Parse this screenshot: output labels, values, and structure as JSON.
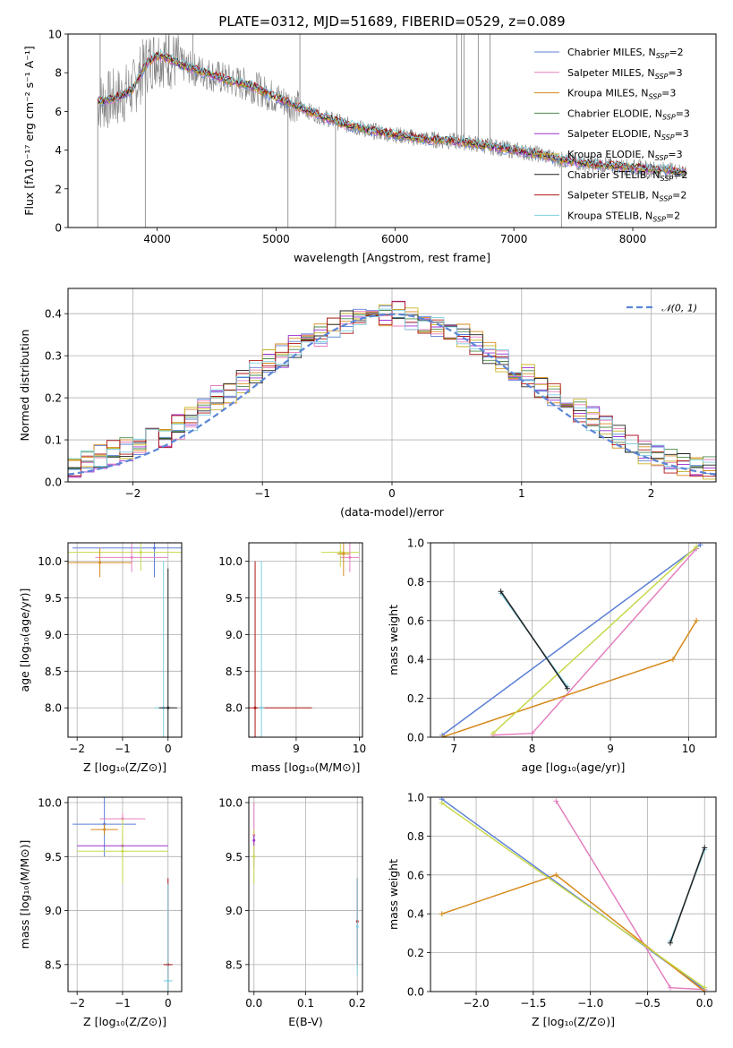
{
  "chart_data": [
    {
      "type": "line",
      "title": "PLATE=0312, MJD=51689, FIBERID=0529, z=0.089",
      "xlabel": "wavelength [Angstrom, rest frame]",
      "ylabel": "Flux [fλ10⁻¹⁷ erg cm⁻² s⁻¹ A⁻¹]",
      "xlim": [
        3250,
        8700
      ],
      "ylim": [
        0,
        10
      ],
      "xticks": [
        "4000",
        "5000",
        "6000",
        "7000",
        "8000"
      ],
      "yticks": [
        "0",
        "2",
        "4",
        "6",
        "8",
        "10"
      ],
      "grid": false,
      "legend_position": "top-right",
      "data_series": {
        "name": "",
        "color": "#808080"
      },
      "series": [
        {
          "name": "Chabrier MILES, N",
          "sub": "SSP",
          "suffix": "=2",
          "color": "#5b7fd6"
        },
        {
          "name": "Salpeter MILES, N",
          "sub": "SSP",
          "suffix": "=3",
          "color": "#e57fbf"
        },
        {
          "name": "Kroupa MILES, N",
          "sub": "SSP",
          "suffix": "=3",
          "color": "#d68a1c"
        },
        {
          "name": "Chabrier ELODIE, N",
          "sub": "SSP",
          "suffix": "=3",
          "color": "#4b8a4b"
        },
        {
          "name": "Salpeter ELODIE, N",
          "sub": "SSP",
          "suffix": "=3",
          "color": "#9b30d0"
        },
        {
          "name": "Kroupa ELODIE, N",
          "sub": "SSP",
          "suffix": "=3",
          "color": "#c8b428"
        },
        {
          "name": "Chabrier STELIB, N",
          "sub": "SSP",
          "suffix": "=2",
          "color": "#222222"
        },
        {
          "name": "Salpeter STELIB, N",
          "sub": "SSP",
          "suffix": "=2",
          "color": "#b01515"
        },
        {
          "name": "Kroupa STELIB, N",
          "sub": "SSP",
          "suffix": "=2",
          "color": "#7ecfe0"
        }
      ],
      "continuum": [
        [
          3500,
          6.5
        ],
        [
          3600,
          6.6
        ],
        [
          3700,
          6.8
        ],
        [
          3800,
          7.2
        ],
        [
          3900,
          8.4
        ],
        [
          4000,
          8.9
        ],
        [
          4100,
          8.7
        ],
        [
          4200,
          8.4
        ],
        [
          4400,
          8.0
        ],
        [
          4600,
          7.6
        ],
        [
          4800,
          7.3
        ],
        [
          5000,
          6.7
        ],
        [
          5200,
          6.2
        ],
        [
          5400,
          5.7
        ],
        [
          5600,
          5.3
        ],
        [
          5800,
          5.0
        ],
        [
          6000,
          4.8
        ],
        [
          6200,
          4.6
        ],
        [
          6400,
          4.5
        ],
        [
          6600,
          4.4
        ],
        [
          6800,
          4.2
        ],
        [
          7000,
          4.0
        ],
        [
          7200,
          3.8
        ],
        [
          7400,
          3.5
        ],
        [
          7600,
          3.3
        ],
        [
          7800,
          3.2
        ],
        [
          8000,
          3.1
        ],
        [
          8200,
          3.0
        ],
        [
          8400,
          2.9
        ]
      ],
      "data_spikes": [
        [
          3500,
          0.0
        ],
        [
          3520,
          10.0
        ],
        [
          3900,
          0.0
        ],
        [
          4100,
          10.0
        ],
        [
          4300,
          10.0
        ],
        [
          5100,
          0.0
        ],
        [
          5200,
          10.0
        ],
        [
          5500,
          0.0
        ],
        [
          6520,
          10.0
        ],
        [
          6560,
          10.0
        ],
        [
          6580,
          10.0
        ],
        [
          6700,
          10.0
        ],
        [
          6800,
          10.0
        ],
        [
          7400,
          0.0
        ]
      ]
    },
    {
      "type": "line",
      "xlabel": "(data-model)/error",
      "ylabel": "Normed distribution",
      "xlim": [
        -2.5,
        2.5
      ],
      "ylim": [
        0,
        0.46
      ],
      "xticks": [
        "−2",
        "−1",
        "0",
        "1",
        "2"
      ],
      "yticks": [
        "0.0",
        "0.1",
        "0.2",
        "0.3",
        "0.4"
      ],
      "grid": true,
      "legend": {
        "label": "𝒩(0, 1)",
        "position": "top-right",
        "color": "#5b86d6"
      },
      "bin_width": 0.1,
      "hist_base": [
        0.04,
        0.05,
        0.06,
        0.07,
        0.08,
        0.08,
        0.1,
        0.11,
        0.13,
        0.15,
        0.17,
        0.2,
        0.21,
        0.24,
        0.26,
        0.29,
        0.3,
        0.32,
        0.33,
        0.35,
        0.36,
        0.38,
        0.39,
        0.4,
        0.4,
        0.4,
        0.39,
        0.38,
        0.37,
        0.36,
        0.35,
        0.33,
        0.31,
        0.29,
        0.27,
        0.25,
        0.23,
        0.21,
        0.19,
        0.17,
        0.15,
        0.13,
        0.11,
        0.09,
        0.07,
        0.06,
        0.05,
        0.04,
        0.035,
        0.03
      ]
    },
    {
      "type": "scatter",
      "xlabel": "Z [log₁₀(Z/Z⊙)]",
      "ylabel": "age  [log₁₀(age/yr)]",
      "xlim": [
        -2.2,
        0.3
      ],
      "ylim": [
        7.6,
        10.25
      ],
      "xticks": [
        "−2",
        "−1",
        "0"
      ],
      "yticks": [
        "8.0",
        "8.5",
        "9.0",
        "9.5",
        "10.0"
      ],
      "grid": true,
      "points": [
        {
          "x": -0.3,
          "y": 10.18,
          "xerr": 1.8,
          "yerr": 0.4,
          "color": "#5b7fd6"
        },
        {
          "x": -0.6,
          "y": 10.12,
          "xerr": 1.7,
          "yerr": 0.25,
          "color": "#c8d84a"
        },
        {
          "x": -0.8,
          "y": 10.05,
          "xerr": 0.8,
          "yerr": 0.2,
          "color": "#e57fbf"
        },
        {
          "x": -1.5,
          "y": 9.98,
          "xerr": 0.7,
          "yerr": 0.2,
          "color": "#d68a1c"
        },
        {
          "x": -0.1,
          "y": 8.0,
          "xerr": 0.2,
          "yerr": 2.0,
          "color": "#7ecfe0"
        },
        {
          "x": 0.0,
          "y": 8.0,
          "xerr": 0.2,
          "yerr": 1.9,
          "color": "#222222"
        }
      ]
    },
    {
      "type": "scatter",
      "xlabel": "mass [log₁₀(M/M⊙)]",
      "ylabel": "",
      "xlim": [
        8.25,
        10.05
      ],
      "ylim": [
        7.6,
        10.25
      ],
      "xticks": [
        "9",
        "10"
      ],
      "yticks": [
        "8.0",
        "8.5",
        "9.0",
        "9.5",
        "10.0"
      ],
      "grid": true,
      "points": [
        {
          "x": 9.7,
          "y": 10.12,
          "xerr": 0.3,
          "yerr": 0.2,
          "color": "#c8d84a"
        },
        {
          "x": 9.85,
          "y": 10.05,
          "xerr": 0.15,
          "yerr": 0.2,
          "color": "#e57fbf"
        },
        {
          "x": 9.75,
          "y": 10.1,
          "xerr": 0.1,
          "yerr": 0.3,
          "color": "#d68a1c"
        },
        {
          "x": 8.35,
          "y": 8.0,
          "xerr": 0.9,
          "yerr": 2.0,
          "color": "#b01515"
        },
        {
          "x": 8.45,
          "y": 8.0,
          "xerr": 0.05,
          "yerr": 2.0,
          "color": "#7ecfe0"
        }
      ]
    },
    {
      "type": "line",
      "xlabel": "age  [log₁₀(age/yr)]",
      "ylabel": "mass weight",
      "xlim": [
        6.7,
        10.35
      ],
      "ylim": [
        0,
        1
      ],
      "xticks": [
        "7",
        "8",
        "9",
        "10"
      ],
      "yticks": [
        "0.0",
        "0.2",
        "0.4",
        "0.6",
        "0.8",
        "1.0"
      ],
      "grid": true,
      "series": [
        {
          "color": "#5b7fd6",
          "x": [
            6.85,
            10.15
          ],
          "y": [
            0.01,
            0.99
          ]
        },
        {
          "color": "#e57fbf",
          "x": [
            7.5,
            8.0,
            10.1
          ],
          "y": [
            0.01,
            0.02,
            0.97
          ]
        },
        {
          "color": "#d68a1c",
          "x": [
            6.85,
            9.8,
            10.1
          ],
          "y": [
            0.0,
            0.4,
            0.6
          ]
        },
        {
          "color": "#c8d84a",
          "x": [
            7.5,
            10.1
          ],
          "y": [
            0.02,
            0.98
          ]
        },
        {
          "color": "#7ecfe0",
          "x": [
            7.6,
            8.45
          ],
          "y": [
            0.74,
            0.26
          ]
        },
        {
          "color": "#222222",
          "x": [
            7.6,
            8.45
          ],
          "y": [
            0.75,
            0.25
          ]
        }
      ]
    },
    {
      "type": "scatter",
      "xlabel": "Z [log₁₀(Z/Z⊙)]",
      "ylabel": "mass [log₁₀(M/M⊙)]",
      "xlim": [
        -2.2,
        0.3
      ],
      "ylim": [
        8.25,
        10.05
      ],
      "xticks": [
        "−2",
        "−1",
        "0"
      ],
      "yticks": [
        "8.5",
        "9.0",
        "9.5",
        "10.0"
      ],
      "grid": true,
      "points": [
        {
          "x": -1.4,
          "y": 9.8,
          "xerr": 0.7,
          "yerr": 0.3,
          "color": "#5b7fd6"
        },
        {
          "x": -1.0,
          "y": 9.85,
          "xerr": 0.5,
          "yerr": 0.05,
          "color": "#e57fbf"
        },
        {
          "x": -1.4,
          "y": 9.75,
          "xerr": 0.3,
          "yerr": 0.05,
          "color": "#d68a1c"
        },
        {
          "x": -1.0,
          "y": 9.6,
          "xerr": 1.0,
          "yerr": 0.1,
          "color": "#9b30d0"
        },
        {
          "x": -1.0,
          "y": 9.55,
          "xerr": 1.0,
          "yerr": 0.3,
          "color": "#c8d84a"
        },
        {
          "x": 0.0,
          "y": 8.5,
          "xerr": 0.1,
          "yerr": 0.8,
          "color": "#b01515"
        },
        {
          "x": 0.0,
          "y": 8.35,
          "xerr": 0.1,
          "yerr": 0.9,
          "color": "#7ecfe0"
        }
      ]
    },
    {
      "type": "scatter",
      "xlabel": "E(B-V)",
      "ylabel": "",
      "xlim": [
        -0.01,
        0.21
      ],
      "ylim": [
        8.25,
        10.05
      ],
      "xticks": [
        "0.0",
        "0.1",
        "0.2"
      ],
      "yticks": [
        "8.5",
        "9.0",
        "9.5",
        "10.0"
      ],
      "grid": true,
      "points": [
        {
          "x": 0.0,
          "y": 9.7,
          "xerr": 0,
          "yerr": 0.3,
          "color": "#e57fbf"
        },
        {
          "x": 0.0,
          "y": 9.5,
          "xerr": 0,
          "yerr": 0.25,
          "color": "#c8d84a"
        },
        {
          "x": 0.0,
          "y": 9.65,
          "xerr": 0,
          "yerr": 0.05,
          "color": "#9b30d0"
        },
        {
          "x": 0.2,
          "y": 8.9,
          "xerr": 0,
          "yerr": 0.4,
          "color": "#b01515"
        },
        {
          "x": 0.2,
          "y": 8.85,
          "xerr": 0,
          "yerr": 0.45,
          "color": "#7ecfe0"
        }
      ]
    },
    {
      "type": "line",
      "xlabel": "Z [log₁₀(Z/Z⊙)]",
      "ylabel": "mass weight",
      "xlim": [
        -2.4,
        0.1
      ],
      "ylim": [
        0,
        1
      ],
      "xticks": [
        "−2.0",
        "−1.5",
        "−1.0",
        "−0.5",
        "0.0"
      ],
      "yticks": [
        "0.0",
        "0.2",
        "0.4",
        "0.6",
        "0.8",
        "1.0"
      ],
      "grid": true,
      "series": [
        {
          "color": "#5b7fd6",
          "x": [
            -2.3,
            0.0
          ],
          "y": [
            0.99,
            0.01
          ]
        },
        {
          "color": "#e57fbf",
          "x": [
            -1.3,
            -0.3,
            0.0
          ],
          "y": [
            0.98,
            0.02,
            0.01
          ]
        },
        {
          "color": "#d68a1c",
          "x": [
            -2.3,
            -1.3,
            0.0
          ],
          "y": [
            0.4,
            0.6,
            0.0
          ]
        },
        {
          "color": "#c8d84a",
          "x": [
            -2.3,
            0.0
          ],
          "y": [
            0.97,
            0.02
          ]
        },
        {
          "color": "#7ecfe0",
          "x": [
            -0.3,
            0.0
          ],
          "y": [
            0.26,
            0.73
          ]
        },
        {
          "color": "#222222",
          "x": [
            -0.3,
            0.0
          ],
          "y": [
            0.25,
            0.74
          ]
        }
      ]
    }
  ]
}
